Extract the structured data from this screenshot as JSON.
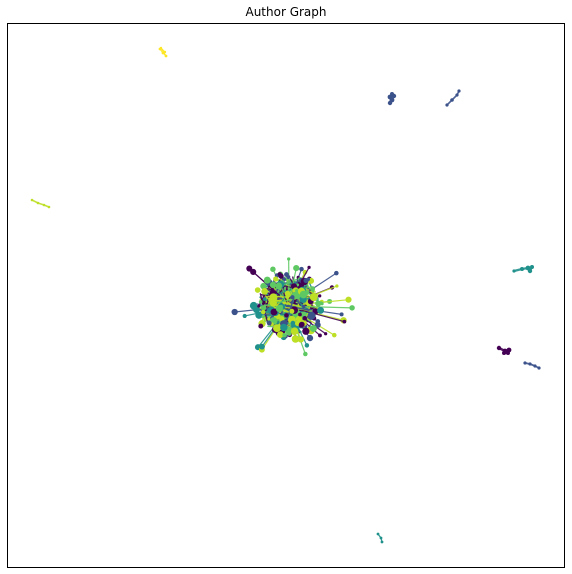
{
  "chart_data": {
    "type": "network",
    "title": "Author Graph",
    "xlabel": "",
    "ylabel": "",
    "axis_ticks": false,
    "grid": false,
    "legend": "none",
    "colormap": "viridis",
    "palette": [
      "#440154",
      "#3b528b",
      "#21918c",
      "#5ec962",
      "#bddf26",
      "#fde725"
    ]
  }
}
